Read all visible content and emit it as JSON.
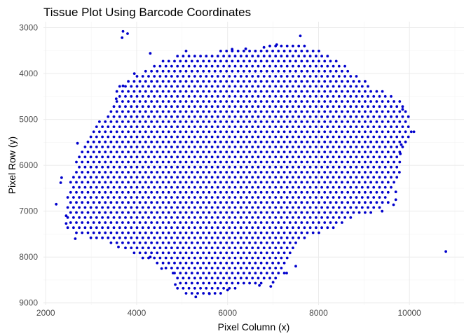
{
  "chart_data": {
    "type": "scatter",
    "title": "Tissue Plot Using Barcode Coordinates",
    "xlabel": "Pixel Column (x)",
    "ylabel": "Pixel Row (y)",
    "xlim": [
      1950,
      11200
    ],
    "ylim": [
      9050,
      2870
    ],
    "y_reversed": true,
    "x_ticks": [
      2000,
      4000,
      6000,
      8000,
      10000
    ],
    "y_ticks": [
      3000,
      4000,
      5000,
      6000,
      7000,
      8000,
      9000
    ],
    "grid": true,
    "legend": "none",
    "point_color": "#0000CC",
    "lattice": {
      "x_step": 127,
      "y_step": 110,
      "x0": 2230,
      "y0": 3180,
      "boundary": [
        [
          3600,
          4250
        ],
        [
          3900,
          4100
        ],
        [
          4300,
          3850
        ],
        [
          4700,
          3650
        ],
        [
          5100,
          3500
        ],
        [
          5600,
          3550
        ],
        [
          6000,
          3480
        ],
        [
          6500,
          3450
        ],
        [
          7000,
          3380
        ],
        [
          7600,
          3300
        ],
        [
          8000,
          3500
        ],
        [
          8400,
          3700
        ],
        [
          8800,
          4000
        ],
        [
          9300,
          4350
        ],
        [
          9700,
          4500
        ],
        [
          9950,
          4800
        ],
        [
          10050,
          5300
        ],
        [
          9850,
          5800
        ],
        [
          9700,
          6400
        ],
        [
          9500,
          6900
        ],
        [
          9300,
          7000
        ],
        [
          8900,
          7100
        ],
        [
          8500,
          7300
        ],
        [
          8200,
          7450
        ],
        [
          7900,
          7500
        ],
        [
          7600,
          7700
        ],
        [
          7250,
          8350
        ],
        [
          6900,
          8550
        ],
        [
          6400,
          8650
        ],
        [
          6000,
          8750
        ],
        [
          5600,
          8900
        ],
        [
          5200,
          8900
        ],
        [
          4900,
          8700
        ],
        [
          4700,
          8300
        ],
        [
          4400,
          8100
        ],
        [
          3900,
          7950
        ],
        [
          3500,
          7700
        ],
        [
          3100,
          7650
        ],
        [
          2700,
          7500
        ],
        [
          2450,
          7350
        ],
        [
          2450,
          6900
        ],
        [
          2550,
          6300
        ],
        [
          2700,
          5700
        ],
        [
          3000,
          5300
        ],
        [
          3200,
          5000
        ],
        [
          3450,
          4700
        ]
      ]
    },
    "outliers": [
      [
        3700,
        3080
      ],
      [
        3800,
        3130
      ],
      [
        3680,
        3220
      ],
      [
        4300,
        3560
      ],
      [
        3950,
        4000
      ],
      [
        2230,
        6850
      ],
      [
        2350,
        6270
      ],
      [
        2330,
        6380
      ],
      [
        10800,
        7880
      ],
      [
        10100,
        5270
      ],
      [
        9850,
        4780
      ],
      [
        9820,
        5550
      ],
      [
        9800,
        5750
      ],
      [
        9780,
        6150
      ],
      [
        9700,
        6580
      ],
      [
        9700,
        6750
      ],
      [
        9650,
        6860
      ],
      [
        9400,
        7000
      ],
      [
        7600,
        3180
      ],
      [
        7080,
        3370
      ],
      [
        6800,
        3430
      ],
      [
        6400,
        3460
      ],
      [
        6100,
        3470
      ],
      [
        3700,
        4270
      ],
      [
        3550,
        4550
      ],
      [
        2700,
        5520
      ],
      [
        2450,
        7100
      ],
      [
        2450,
        7270
      ],
      [
        3600,
        7780
      ],
      [
        4300,
        8000
      ],
      [
        4550,
        8250
      ],
      [
        4800,
        8350
      ],
      [
        4850,
        8600
      ],
      [
        5300,
        8870
      ],
      [
        5600,
        8800
      ],
      [
        6000,
        8720
      ],
      [
        6950,
        8640
      ],
      [
        6700,
        8620
      ],
      [
        7300,
        8350
      ],
      [
        7500,
        8200
      ],
      [
        7000,
        8550
      ],
      [
        2650,
        7600
      ]
    ]
  }
}
